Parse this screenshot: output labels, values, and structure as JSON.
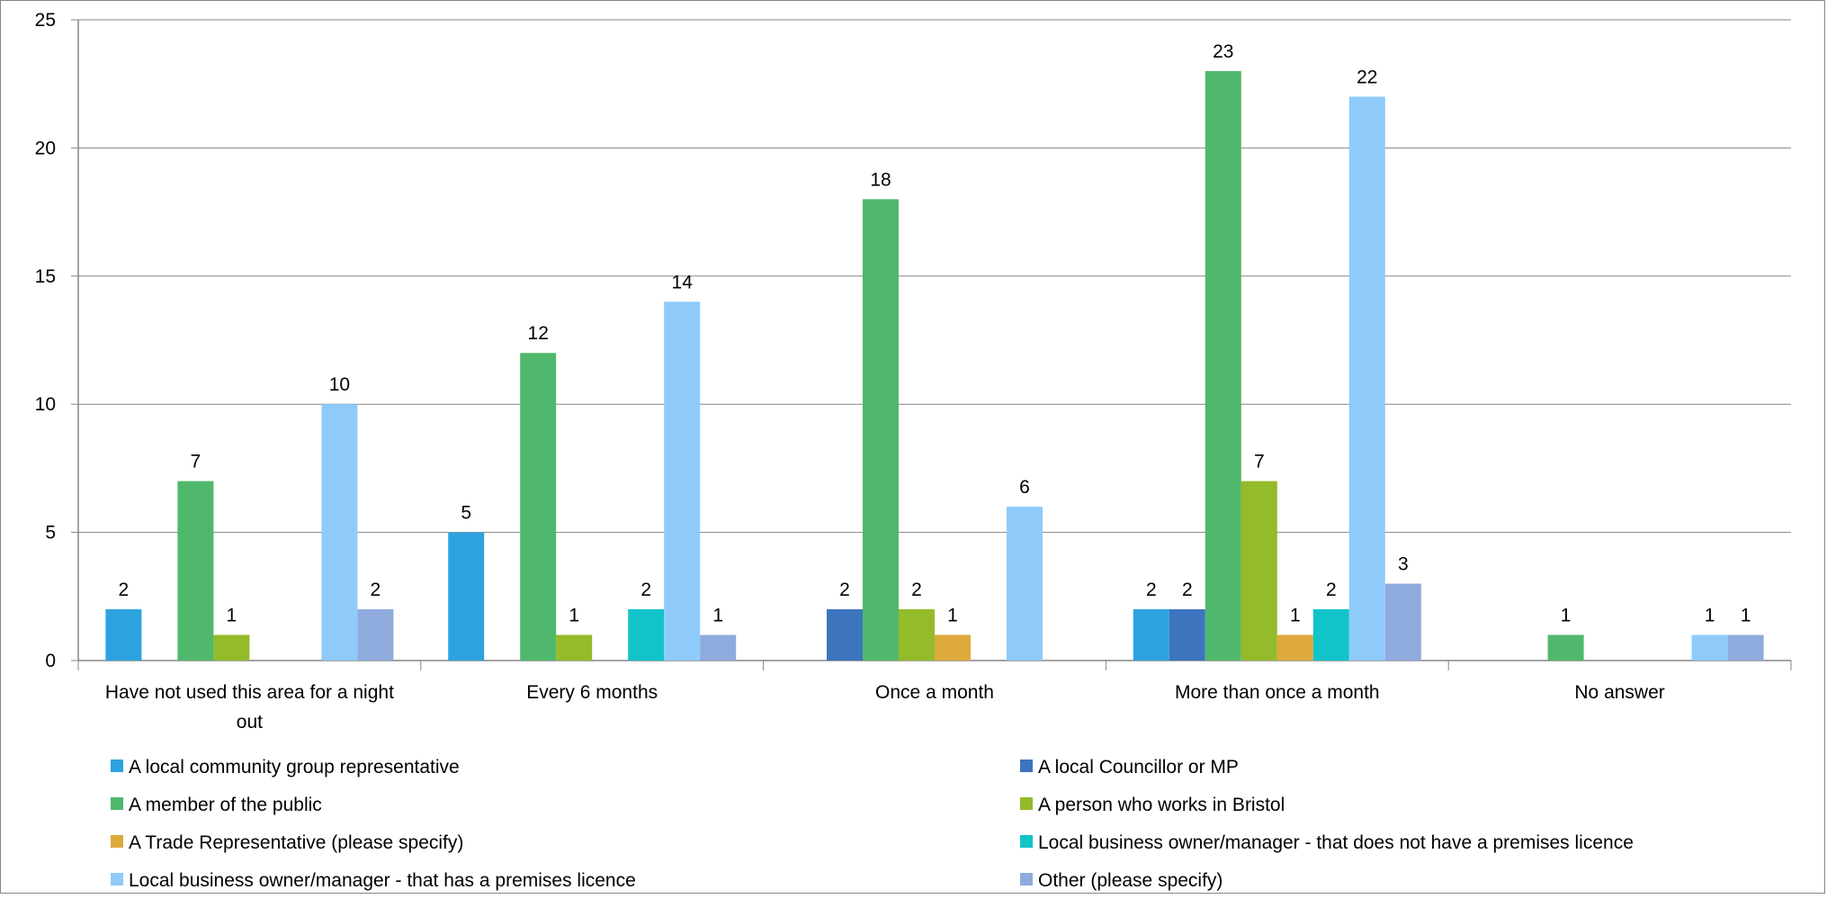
{
  "chart_data": {
    "type": "bar",
    "title": "",
    "xlabel": "",
    "ylabel": "",
    "ylim": [
      0,
      25
    ],
    "yticks": [
      0,
      5,
      10,
      15,
      20,
      25
    ],
    "grid": true,
    "legend_position": "bottom",
    "categories": [
      [
        "Have not used this area for a night",
        "out"
      ],
      [
        "Every 6 months"
      ],
      [
        "Once a month"
      ],
      [
        "More than once a month"
      ],
      [
        "No answer"
      ]
    ],
    "series": [
      {
        "name": "A local community group representative",
        "color": "#2CA3DF",
        "values": [
          2,
          5,
          0,
          2,
          0
        ]
      },
      {
        "name": "A local Councillor or MP",
        "color": "#3C74BE",
        "values": [
          0,
          0,
          2,
          2,
          0
        ]
      },
      {
        "name": "A member of the public",
        "color": "#50B86C",
        "values": [
          7,
          12,
          18,
          23,
          1
        ]
      },
      {
        "name": "A person who works in Bristol",
        "color": "#93BB2A",
        "values": [
          1,
          1,
          2,
          7,
          0
        ]
      },
      {
        "name": "A Trade Representative (please specify)",
        "color": "#DEA93B",
        "values": [
          0,
          0,
          1,
          1,
          0
        ]
      },
      {
        "name": "Local business owner/manager - that does not have a premises licence",
        "color": "#10C4C8",
        "values": [
          0,
          2,
          0,
          2,
          0
        ]
      },
      {
        "name": "Local business owner/manager - that has a premises licence",
        "color": "#8ECBFB",
        "values": [
          10,
          14,
          6,
          22,
          1
        ]
      },
      {
        "name": "Other (please specify)",
        "color": "#8FAADC",
        "values": [
          2,
          1,
          0,
          3,
          1
        ]
      }
    ]
  }
}
